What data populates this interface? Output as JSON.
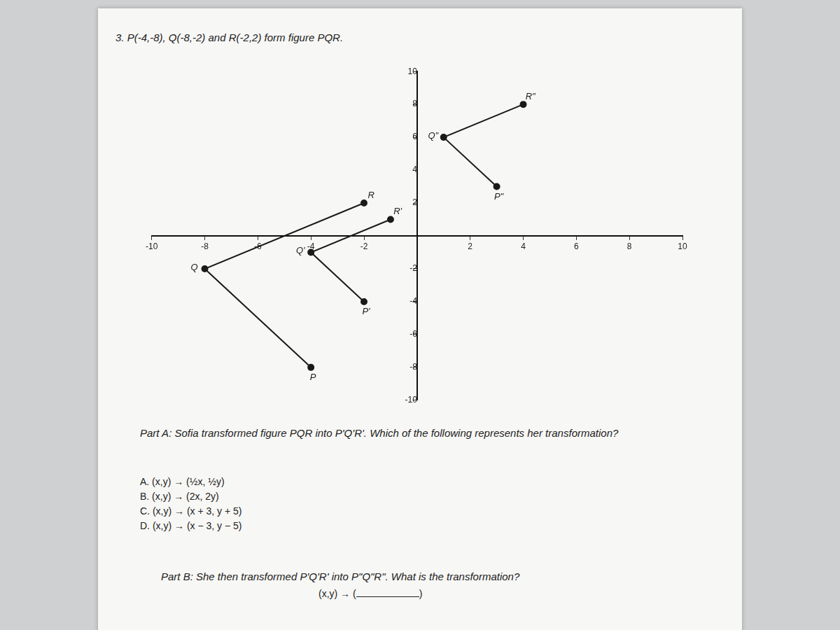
{
  "question": "3. P(-4,-8), Q(-8,-2) and R(-2,2) form figure PQR.",
  "chart_data": {
    "type": "line",
    "xlim": [
      -10,
      10
    ],
    "ylim": [
      -10,
      10
    ],
    "xticks": [
      -10,
      -8,
      -6,
      -4,
      -2,
      2,
      4,
      6,
      8,
      10
    ],
    "yticks": [
      -10,
      -8,
      -6,
      -4,
      -2,
      2,
      4,
      6,
      8,
      10
    ],
    "grid": false,
    "series": [
      {
        "x": [
          -4,
          -8,
          -2
        ],
        "values": [
          -8,
          -2,
          2
        ],
        "point_labels": [
          "P",
          "Q",
          "R"
        ],
        "color": "#1a1a1a",
        "marker": "circle",
        "line_style": "solid"
      },
      {
        "x": [
          -2,
          -4,
          -1
        ],
        "values": [
          -4,
          -1,
          1
        ],
        "point_labels": [
          "P'",
          "Q'",
          "R'"
        ],
        "color": "#1a1a1a",
        "marker": "circle",
        "line_style": "solid"
      },
      {
        "x": [
          3,
          1,
          4
        ],
        "values": [
          3,
          6,
          8
        ],
        "point_labels": [
          "P\"",
          "Q\"",
          "R\""
        ],
        "color": "#1a1a1a",
        "marker": "circle",
        "line_style": "solid"
      }
    ]
  },
  "part_a": {
    "prompt": "Part A: Sofia transformed figure PQR into P'Q'R'. Which of the following represents her transformation?",
    "options": [
      "A. (x,y) → (½x, ½y)",
      "B. (x,y) → (2x, 2y)",
      "C. (x,y) → (x + 3, y + 5)",
      "D. (x,y) → (x − 3, y − 5)"
    ]
  },
  "part_b": {
    "prompt": "Part B: She then transformed P'Q'R' into P\"Q\"R\". What is the transformation?",
    "answer_prefix": "(x,y) → (",
    "answer_suffix": ")"
  }
}
